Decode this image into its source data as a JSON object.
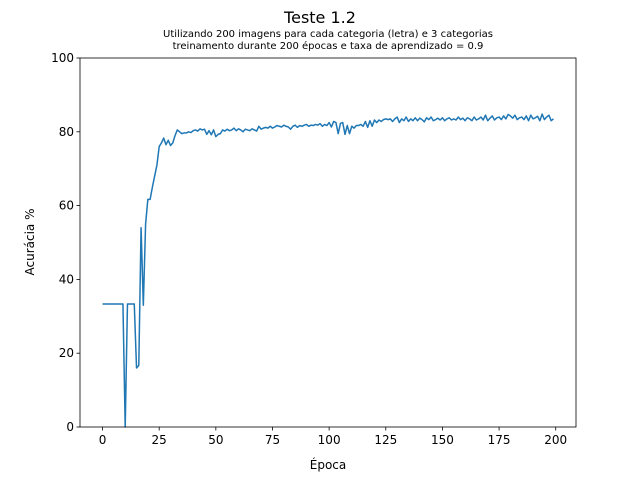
{
  "chart_data": {
    "type": "line",
    "title": "Teste 1.2",
    "subtitle": [
      "Utilizando 200 imagens para cada categoria (letra) e 3 categorias",
      "treinamento durante 200 épocas e taxa de aprendizado = 0.9"
    ],
    "xlabel": "Época",
    "ylabel": "Acurácia %",
    "color": "#1f77b4",
    "grid": false,
    "xlim": [
      -9.95,
      208.95
    ],
    "xticks": [
      0,
      25,
      50,
      75,
      100,
      125,
      150,
      175,
      200
    ],
    "ylim": [
      0,
      100
    ],
    "yticks": [
      0,
      20,
      40,
      60,
      80,
      100
    ],
    "x": [
      0,
      1,
      2,
      3,
      4,
      5,
      6,
      7,
      8,
      9,
      10,
      11,
      12,
      13,
      14,
      15,
      16,
      17,
      18,
      19,
      20,
      21,
      22,
      23,
      24,
      25,
      26,
      27,
      28,
      29,
      30,
      31,
      32,
      33,
      34,
      35,
      36,
      37,
      38,
      39,
      40,
      41,
      42,
      43,
      44,
      45,
      46,
      47,
      48,
      49,
      50,
      51,
      52,
      53,
      54,
      55,
      56,
      57,
      58,
      59,
      60,
      61,
      62,
      63,
      64,
      65,
      66,
      67,
      68,
      69,
      70,
      71,
      72,
      73,
      74,
      75,
      76,
      77,
      78,
      79,
      80,
      81,
      82,
      83,
      84,
      85,
      86,
      87,
      88,
      89,
      90,
      91,
      92,
      93,
      94,
      95,
      96,
      97,
      98,
      99,
      100,
      101,
      102,
      103,
      104,
      105,
      106,
      107,
      108,
      109,
      110,
      111,
      112,
      113,
      114,
      115,
      116,
      117,
      118,
      119,
      120,
      121,
      122,
      123,
      124,
      125,
      126,
      127,
      128,
      129,
      130,
      131,
      132,
      133,
      134,
      135,
      136,
      137,
      138,
      139,
      140,
      141,
      142,
      143,
      144,
      145,
      146,
      147,
      148,
      149,
      150,
      151,
      152,
      153,
      154,
      155,
      156,
      157,
      158,
      159,
      160,
      161,
      162,
      163,
      164,
      165,
      166,
      167,
      168,
      169,
      170,
      171,
      172,
      173,
      174,
      175,
      176,
      177,
      178,
      179,
      180,
      181,
      182,
      183,
      184,
      185,
      186,
      187,
      188,
      189,
      190,
      191,
      192,
      193,
      194,
      195,
      196,
      197,
      198,
      199
    ],
    "values": [
      33.33,
      33.33,
      33.33,
      33.33,
      33.33,
      33.33,
      33.33,
      33.33,
      33.33,
      33.33,
      0,
      33.33,
      33.33,
      33.33,
      33.33,
      16,
      16.7,
      54,
      33,
      55,
      61.7,
      61.7,
      65,
      68,
      71,
      76,
      77,
      78.3,
      76.5,
      77.7,
      76.3,
      77,
      79,
      80.5,
      80,
      79.5,
      79.7,
      79.7,
      80,
      79.8,
      80.3,
      80.5,
      80.2,
      80.8,
      80.5,
      80.7,
      79.3,
      80.3,
      79.2,
      80.5,
      78.7,
      79.3,
      79.5,
      80.5,
      80.2,
      80.7,
      80.3,
      80.5,
      81,
      80.3,
      80.8,
      80.5,
      80,
      80.7,
      80.5,
      80.3,
      80.8,
      80.5,
      80.2,
      81.5,
      80.7,
      81,
      81.2,
      81,
      81.5,
      81,
      81.3,
      81.7,
      81.5,
      81.3,
      81.8,
      81.5,
      81.3,
      80.7,
      81.5,
      81.8,
      81.2,
      81.7,
      81.5,
      81.8,
      82,
      81.5,
      81.8,
      81.7,
      82,
      81.8,
      82.2,
      81.5,
      82,
      81.7,
      82.5,
      81.3,
      82.8,
      82.5,
      79.5,
      82.3,
      82.5,
      79.3,
      81.7,
      79.5,
      81.5,
      81,
      81.7,
      81.7,
      82,
      81.5,
      82.8,
      81.2,
      83,
      81.5,
      83.2,
      82.5,
      83.2,
      82.8,
      83.3,
      83.5,
      83.3,
      83.5,
      82.8,
      83.5,
      84,
      82.5,
      83.5,
      83,
      84,
      82.8,
      83.5,
      83,
      83.8,
      83,
      83.7,
      83.3,
      82.7,
      83.8,
      83.3,
      84,
      83,
      83.3,
      83.7,
      83.2,
      83.8,
      83,
      83.5,
      83.8,
      83.2,
      83.5,
      83.2,
      84,
      83.3,
      83.7,
      83,
      83.8,
      83.5,
      83,
      84,
      83.2,
      83.5,
      84,
      83.2,
      84.5,
      83,
      83.7,
      84.3,
      83.2,
      83.8,
      84,
      83.3,
      84.3,
      83.5,
      84.7,
      84.3,
      83.7,
      84.5,
      83.3,
      83.8,
      84,
      83.3,
      84.3,
      83,
      84.5,
      83.5,
      83.8,
      84.2,
      83,
      84.8,
      83.3,
      84,
      84.5,
      83,
      83.5
    ]
  }
}
